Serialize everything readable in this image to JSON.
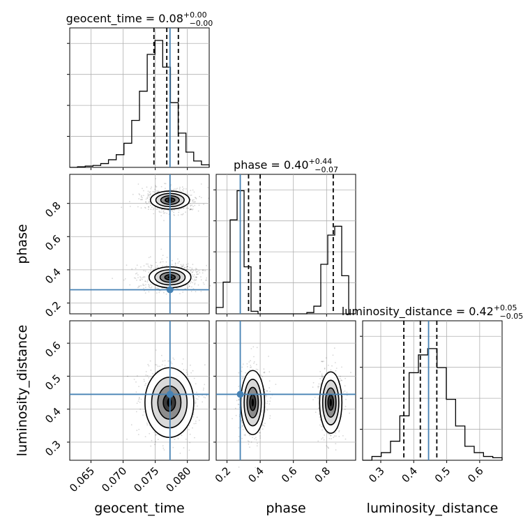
{
  "chart_data": {
    "type": "corner",
    "parameters": [
      "geocent_time",
      "phase",
      "luminosity_distance"
    ],
    "titles": [
      {
        "name": "geocent_time",
        "value": "0.08",
        "plus": "+0.00",
        "minus": "−0.00"
      },
      {
        "name": "phase",
        "value": "0.40",
        "plus": "+0.44",
        "minus": "−0.07"
      },
      {
        "name": "luminosity_distance",
        "value": "0.42",
        "plus": "+0.05",
        "minus": "−0.05"
      }
    ],
    "axis_labels": {
      "x": [
        "geocent_time",
        "phase",
        "luminosity_distance"
      ],
      "y": [
        "phase",
        "luminosity_distance"
      ]
    },
    "ranges": {
      "geocent_time": [
        0.0617,
        0.0834
      ],
      "phase": [
        0.135,
        0.975
      ],
      "luminosity_distance": [
        0.245,
        0.668
      ]
    },
    "ticks": {
      "geocent_time": [
        "0.065",
        "0.070",
        "0.075",
        "0.080"
      ],
      "phase": [
        "0.2",
        "0.4",
        "0.6",
        "0.8"
      ],
      "luminosity_distance": [
        "0.3",
        "0.4",
        "0.5",
        "0.6"
      ]
    },
    "truth": {
      "geocent_time": 0.0773,
      "phase": 0.28,
      "luminosity_distance": 0.445,
      "color": "#4682b4"
    },
    "quantiles": {
      "geocent_time": [
        0.0748,
        0.0768,
        0.0786
      ],
      "phase": [
        0.33,
        0.4,
        0.84
      ],
      "luminosity_distance": [
        0.37,
        0.42,
        0.47
      ]
    },
    "histograms": {
      "geocent_time": [
        0.0,
        0.005,
        0.01,
        0.015,
        0.03,
        0.06,
        0.1,
        0.19,
        0.37,
        0.6,
        0.89,
        1.0,
        0.79,
        0.51,
        0.27,
        0.12,
        0.05,
        0.02
      ],
      "phase": [
        0.05,
        0.25,
        0.74,
        0.97,
        0.37,
        0.02,
        0.0,
        0.0,
        0.0,
        0.0,
        0.0,
        0.0,
        0.0,
        0.01,
        0.06,
        0.39,
        0.62,
        0.69,
        0.3,
        0.0
      ],
      "luminosity_distance": [
        0.0,
        0.03,
        0.06,
        0.15,
        0.35,
        0.69,
        0.83,
        0.88,
        0.73,
        0.48,
        0.27,
        0.11,
        0.06,
        0.03,
        0.02
      ]
    },
    "grid": true,
    "color": "#000000"
  }
}
